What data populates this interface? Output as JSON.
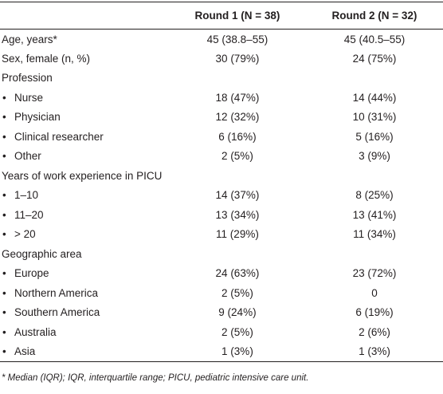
{
  "table": {
    "header": [
      "Round 1 (N = 38)",
      "Round 2 (N = 32)"
    ],
    "rows": [
      [
        "Age, years*",
        "45 (38.8–55)",
        "45 (40.5–55)"
      ],
      [
        "Sex, female (n, %)",
        "30 (79%)",
        "24 (75%)"
      ]
    ],
    "groups": [
      {
        "title": "Profession",
        "rows": [
          [
            "Nurse",
            "18 (47%)",
            "14 (44%)"
          ],
          [
            "Physician",
            "12 (32%)",
            "10 (31%)"
          ],
          [
            "Clinical researcher",
            "6 (16%)",
            "5 (16%)"
          ],
          [
            "Other",
            "2 (5%)",
            "3 (9%)"
          ]
        ]
      },
      {
        "title": "Years of work experience in PICU",
        "rows": [
          [
            "1–10",
            "14 (37%)",
            "8 (25%)"
          ],
          [
            "11–20",
            "13 (34%)",
            "13 (41%)"
          ],
          [
            "> 20",
            "11 (29%)",
            "11 (34%)"
          ]
        ]
      },
      {
        "title": "Geographic area",
        "rows": [
          [
            "Europe",
            "24 (63%)",
            "23 (72%)"
          ],
          [
            "Northern America",
            "2 (5%)",
            "0"
          ],
          [
            "Southern America",
            "9 (24%)",
            "6 (19%)"
          ],
          [
            "Australia",
            "2 (5%)",
            "2 (6%)"
          ],
          [
            "Asia",
            "1 (3%)",
            "1 (3%)"
          ]
        ]
      }
    ],
    "footnote": "* Median (IQR); IQR, interquartile range; PICU, pediatric intensive care unit."
  }
}
